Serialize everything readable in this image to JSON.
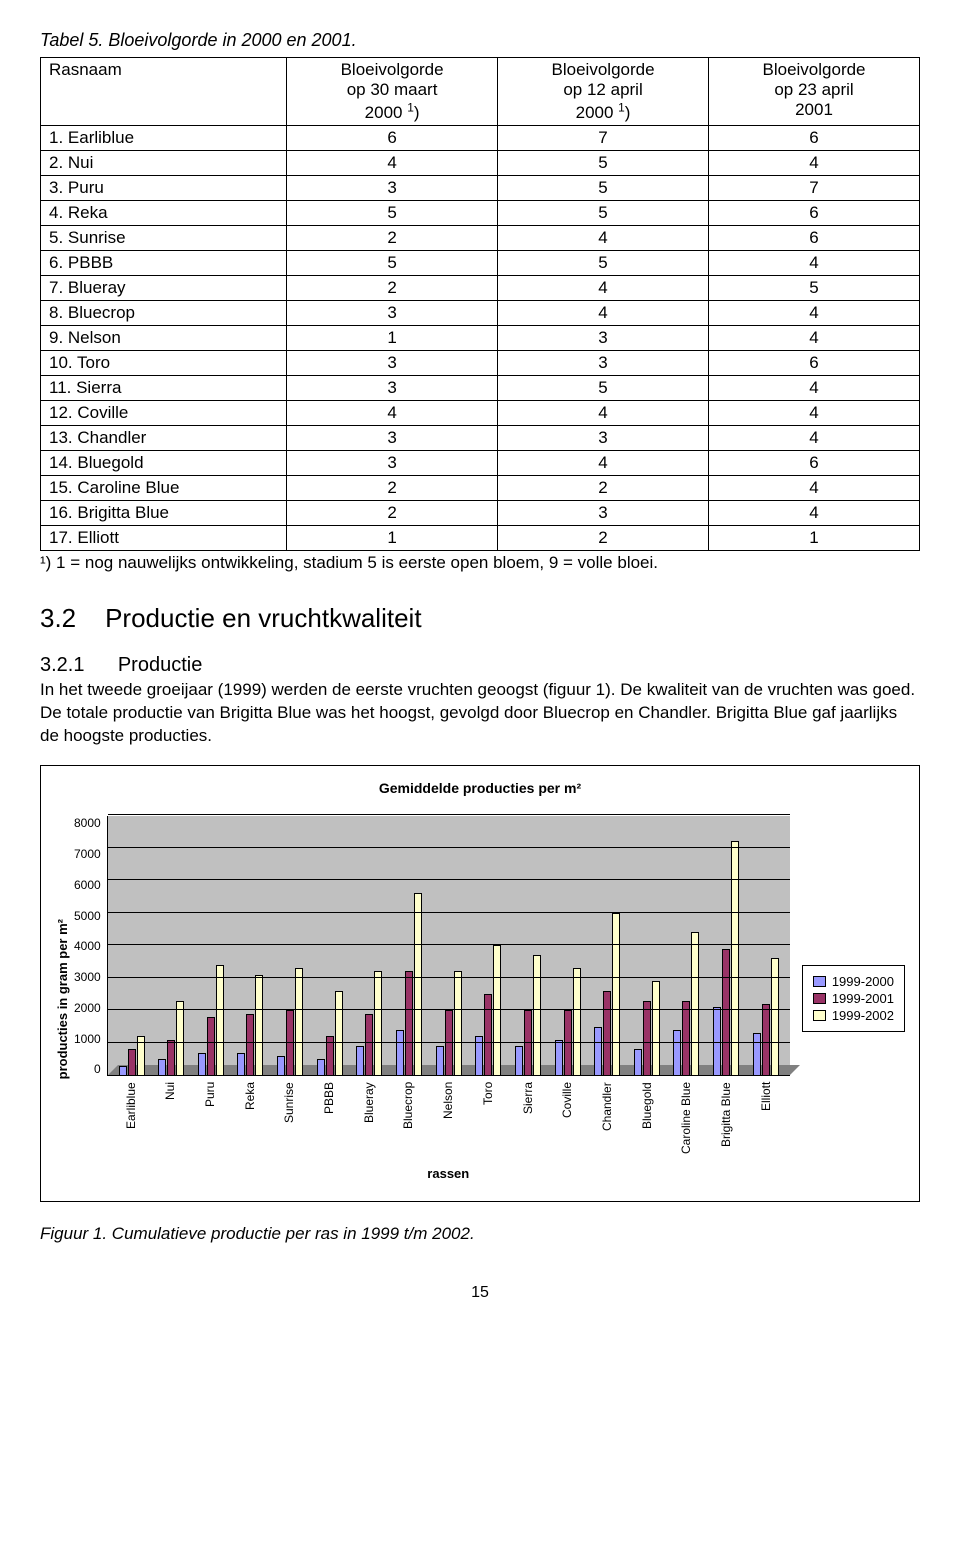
{
  "table": {
    "caption": "Tabel 5. Bloeivolgorde in 2000 en 2001.",
    "columns": [
      "Rasnaam",
      "Bloeivolgorde\nop 30 maart\n2000 ¹)",
      "Bloeivolgorde\nop 12 april\n2000 ¹)",
      "Bloeivolgorde\nop 23 april\n2001"
    ],
    "rows": [
      [
        "1. Earliblue",
        "6",
        "7",
        "6"
      ],
      [
        "2. Nui",
        "4",
        "5",
        "4"
      ],
      [
        "3. Puru",
        "3",
        "5",
        "7"
      ],
      [
        "4. Reka",
        "5",
        "5",
        "6"
      ],
      [
        "5. Sunrise",
        "2",
        "4",
        "6"
      ],
      [
        "6. PBBB",
        "5",
        "5",
        "4"
      ],
      [
        "7. Blueray",
        "2",
        "4",
        "5"
      ],
      [
        "8. Bluecrop",
        "3",
        "4",
        "4"
      ],
      [
        "9. Nelson",
        "1",
        "3",
        "4"
      ],
      [
        "10. Toro",
        "3",
        "3",
        "6"
      ],
      [
        "11. Sierra",
        "3",
        "5",
        "4"
      ],
      [
        "12. Coville",
        "4",
        "4",
        "4"
      ],
      [
        "13. Chandler",
        "3",
        "3",
        "4"
      ],
      [
        "14. Bluegold",
        "3",
        "4",
        "6"
      ],
      [
        "15. Caroline Blue",
        "2",
        "2",
        "4"
      ],
      [
        "16. Brigitta Blue",
        "2",
        "3",
        "4"
      ],
      [
        "17. Elliott",
        "1",
        "2",
        "1"
      ]
    ],
    "footnote": "¹) 1 = nog nauwelijks ontwikkeling, stadium 5 is eerste open bloem, 9 = volle bloei."
  },
  "section": {
    "num": "3.2",
    "title": "Productie en vruchtkwaliteit",
    "sub_num": "3.2.1",
    "sub_title": "Productie",
    "body": "In het tweede groeijaar (1999) werden de eerste vruchten geoogst (figuur 1). De kwaliteit van de vruchten was goed. De totale productie van Brigitta Blue was het hoogst, gevolgd door Bluecrop en Chandler. Brigitta Blue gaf jaarlijks de hoogste producties."
  },
  "chart": {
    "title": "Gemiddelde producties per m²",
    "ylabel": "producties in gram per m²",
    "xlabel": "rassen",
    "ylim": [
      0,
      8000
    ],
    "ytick_step": 1000,
    "yticks": [
      "0",
      "1000",
      "2000",
      "3000",
      "4000",
      "5000",
      "6000",
      "7000",
      "8000"
    ],
    "background_color": "#c0c0c0",
    "floor_color": "#808080",
    "grid_color": "#000000",
    "series": [
      {
        "name": "1999-2000",
        "color": "#9999ff"
      },
      {
        "name": "1999-2001",
        "color": "#993366"
      },
      {
        "name": "1999-2002",
        "color": "#ffffcc"
      }
    ],
    "categories": [
      "Earliblue",
      "Nui",
      "Puru",
      "Reka",
      "Sunrise",
      "PBBB",
      "Blueray",
      "Bluecrop",
      "Nelson",
      "Toro",
      "Sierra",
      "Coville",
      "Chandler",
      "Bluegold",
      "Caroline Blue",
      "Brigitta Blue",
      "Elliott"
    ],
    "values": [
      [
        300,
        800,
        1200
      ],
      [
        500,
        1100,
        2300
      ],
      [
        700,
        1800,
        3400
      ],
      [
        700,
        1900,
        3100
      ],
      [
        600,
        2000,
        3300
      ],
      [
        500,
        1200,
        2600
      ],
      [
        900,
        1900,
        3200
      ],
      [
        1400,
        3200,
        5600
      ],
      [
        900,
        2000,
        3200
      ],
      [
        1200,
        2500,
        4000
      ],
      [
        900,
        2000,
        3700
      ],
      [
        1100,
        2000,
        3300
      ],
      [
        1500,
        2600,
        5000
      ],
      [
        800,
        2300,
        2900
      ],
      [
        1400,
        2300,
        4400
      ],
      [
        2100,
        3900,
        7200
      ],
      [
        1300,
        2200,
        3600
      ]
    ]
  },
  "figure_caption": "Figuur 1. Cumulatieve productie per ras in 1999 t/m 2002.",
  "page_number": "15"
}
